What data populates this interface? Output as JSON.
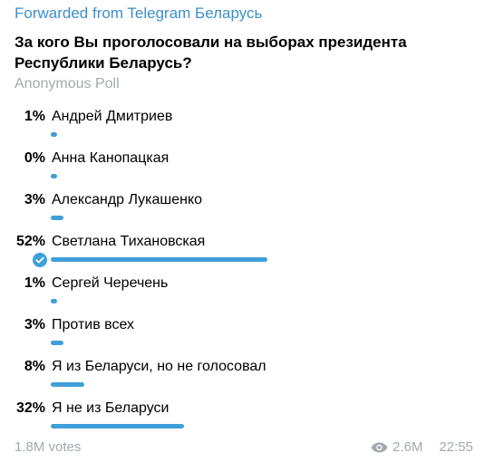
{
  "header": {
    "forwarded": "Forwarded from Telegram Беларусь"
  },
  "poll": {
    "question": "За кого Вы проголосовали на выборах президента Республики Беларусь?",
    "type_label": "Anonymous Poll",
    "options": [
      {
        "percent_label": "1%",
        "label": "Андрей Дмитриев",
        "value": 0.01,
        "chosen": false
      },
      {
        "percent_label": "0%",
        "label": "Анна Канопацкая",
        "value": 0.0,
        "chosen": false
      },
      {
        "percent_label": "3%",
        "label": "Александр Лукашенко",
        "value": 0.03,
        "chosen": false
      },
      {
        "percent_label": "52%",
        "label": "Светлана Тихановская",
        "value": 0.52,
        "chosen": true
      },
      {
        "percent_label": "1%",
        "label": "Сергей Черечень",
        "value": 0.01,
        "chosen": false
      },
      {
        "percent_label": "3%",
        "label": "Против всех",
        "value": 0.03,
        "chosen": false
      },
      {
        "percent_label": "8%",
        "label": "Я из Беларуси, но не голосовал",
        "value": 0.08,
        "chosen": false
      },
      {
        "percent_label": "32%",
        "label": "Я не из Беларуси",
        "value": 0.32,
        "chosen": false
      }
    ]
  },
  "footer": {
    "votes": "1.8M votes",
    "views": "2.6M",
    "time": "22:55"
  },
  "colors": {
    "accent": "#3f9fd8",
    "link": "#3a8fcf",
    "muted": "#a3a9ae"
  },
  "icons": {
    "chosen": "check-circle-icon",
    "views": "eye-icon"
  }
}
